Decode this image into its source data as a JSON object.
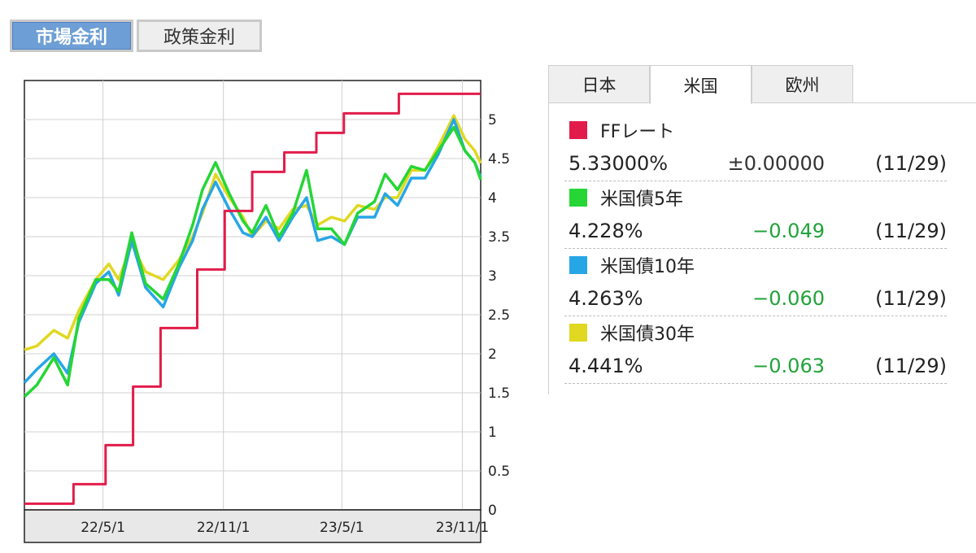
{
  "buttons": {
    "market": "市場金利",
    "policy": "政策金利"
  },
  "tabs": [
    "日本",
    "米国",
    "欧州"
  ],
  "active_tab": "米国",
  "rates": [
    {
      "name": "FFレート",
      "value": "5.33000%",
      "change": "±0.00000",
      "date": "(11/29)",
      "color": "#e21c4a",
      "trend": "flat"
    },
    {
      "name": "米国債5年",
      "value": "4.228%",
      "change": "−0.049",
      "date": "(11/29)",
      "color": "#25d635",
      "trend": "down"
    },
    {
      "name": "米国債10年",
      "value": "4.263%",
      "change": "−0.060",
      "date": "(11/29)",
      "color": "#27a6e6",
      "trend": "down"
    },
    {
      "name": "米国債30年",
      "value": "4.441%",
      "change": "−0.063",
      "date": "(11/29)",
      "color": "#e0d821",
      "trend": "down"
    }
  ],
  "chart_data": {
    "type": "line",
    "x_tick_labels": [
      "22/5/1",
      "22/11/1",
      "23/5/1",
      "23/11/1"
    ],
    "x_range": [
      "2022-01-01",
      "2023-11-29"
    ],
    "y_ticks": [
      0,
      0.5,
      1,
      1.5,
      2,
      2.5,
      3,
      3.5,
      4,
      4.5,
      5
    ],
    "ylim": [
      0,
      5.5
    ],
    "grid": true,
    "y_axis_side": "right",
    "series": [
      {
        "name": "FFレート",
        "color": "#e21c4a",
        "style": "step",
        "points": [
          [
            "2022-01-01",
            0.08
          ],
          [
            "2022-03-17",
            0.33
          ],
          [
            "2022-05-05",
            0.83
          ],
          [
            "2022-06-16",
            1.58
          ],
          [
            "2022-07-28",
            2.33
          ],
          [
            "2022-09-22",
            3.08
          ],
          [
            "2022-11-03",
            3.83
          ],
          [
            "2022-12-15",
            4.33
          ],
          [
            "2023-02-02",
            4.58
          ],
          [
            "2023-03-23",
            4.83
          ],
          [
            "2023-05-04",
            5.08
          ],
          [
            "2023-07-27",
            5.33
          ],
          [
            "2023-11-29",
            5.33
          ]
        ]
      },
      {
        "name": "米国債5年",
        "color": "#25d635",
        "style": "line",
        "points": [
          [
            "2022-01-01",
            1.45
          ],
          [
            "2022-01-20",
            1.6
          ],
          [
            "2022-02-15",
            1.95
          ],
          [
            "2022-03-08",
            1.6
          ],
          [
            "2022-03-25",
            2.45
          ],
          [
            "2022-04-20",
            2.95
          ],
          [
            "2022-05-10",
            2.95
          ],
          [
            "2022-05-25",
            2.8
          ],
          [
            "2022-06-14",
            3.55
          ],
          [
            "2022-07-05",
            2.9
          ],
          [
            "2022-08-01",
            2.7
          ],
          [
            "2022-08-25",
            3.15
          ],
          [
            "2022-09-15",
            3.65
          ],
          [
            "2022-09-30",
            4.1
          ],
          [
            "2022-10-20",
            4.45
          ],
          [
            "2022-11-10",
            4.05
          ],
          [
            "2022-12-01",
            3.7
          ],
          [
            "2022-12-15",
            3.55
          ],
          [
            "2023-01-05",
            3.9
          ],
          [
            "2023-01-25",
            3.5
          ],
          [
            "2023-02-15",
            3.8
          ],
          [
            "2023-03-08",
            4.35
          ],
          [
            "2023-03-25",
            3.6
          ],
          [
            "2023-04-15",
            3.6
          ],
          [
            "2023-05-05",
            3.4
          ],
          [
            "2023-05-25",
            3.8
          ],
          [
            "2023-06-20",
            3.95
          ],
          [
            "2023-07-06",
            4.3
          ],
          [
            "2023-07-25",
            4.1
          ],
          [
            "2023-08-15",
            4.4
          ],
          [
            "2023-09-05",
            4.35
          ],
          [
            "2023-09-25",
            4.6
          ],
          [
            "2023-10-19",
            4.9
          ],
          [
            "2023-11-05",
            4.6
          ],
          [
            "2023-11-20",
            4.45
          ],
          [
            "2023-11-29",
            4.23
          ]
        ]
      },
      {
        "name": "米国債10年",
        "color": "#27a6e6",
        "style": "line",
        "points": [
          [
            "2022-01-01",
            1.63
          ],
          [
            "2022-01-20",
            1.8
          ],
          [
            "2022-02-15",
            2.0
          ],
          [
            "2022-03-08",
            1.75
          ],
          [
            "2022-03-25",
            2.4
          ],
          [
            "2022-04-20",
            2.9
          ],
          [
            "2022-05-10",
            3.05
          ],
          [
            "2022-05-25",
            2.75
          ],
          [
            "2022-06-14",
            3.45
          ],
          [
            "2022-07-05",
            2.85
          ],
          [
            "2022-08-01",
            2.6
          ],
          [
            "2022-08-25",
            3.1
          ],
          [
            "2022-09-15",
            3.45
          ],
          [
            "2022-09-30",
            3.85
          ],
          [
            "2022-10-20",
            4.2
          ],
          [
            "2022-11-10",
            3.85
          ],
          [
            "2022-12-01",
            3.55
          ],
          [
            "2022-12-15",
            3.5
          ],
          [
            "2023-01-05",
            3.75
          ],
          [
            "2023-01-25",
            3.45
          ],
          [
            "2023-02-15",
            3.75
          ],
          [
            "2023-03-08",
            4.0
          ],
          [
            "2023-03-25",
            3.45
          ],
          [
            "2023-04-15",
            3.5
          ],
          [
            "2023-05-05",
            3.4
          ],
          [
            "2023-05-25",
            3.75
          ],
          [
            "2023-06-20",
            3.75
          ],
          [
            "2023-07-06",
            4.05
          ],
          [
            "2023-07-25",
            3.9
          ],
          [
            "2023-08-15",
            4.25
          ],
          [
            "2023-09-05",
            4.25
          ],
          [
            "2023-09-25",
            4.55
          ],
          [
            "2023-10-19",
            5.0
          ],
          [
            "2023-11-05",
            4.6
          ],
          [
            "2023-11-20",
            4.45
          ],
          [
            "2023-11-29",
            4.26
          ]
        ]
      },
      {
        "name": "米国債30年",
        "color": "#e0d821",
        "style": "line",
        "points": [
          [
            "2022-01-01",
            2.05
          ],
          [
            "2022-01-20",
            2.1
          ],
          [
            "2022-02-15",
            2.3
          ],
          [
            "2022-03-08",
            2.2
          ],
          [
            "2022-03-25",
            2.55
          ],
          [
            "2022-04-20",
            2.95
          ],
          [
            "2022-05-10",
            3.15
          ],
          [
            "2022-05-25",
            2.95
          ],
          [
            "2022-06-14",
            3.4
          ],
          [
            "2022-07-05",
            3.05
          ],
          [
            "2022-08-01",
            2.95
          ],
          [
            "2022-08-25",
            3.2
          ],
          [
            "2022-09-15",
            3.5
          ],
          [
            "2022-09-30",
            3.8
          ],
          [
            "2022-10-20",
            4.3
          ],
          [
            "2022-11-10",
            4.0
          ],
          [
            "2022-12-01",
            3.75
          ],
          [
            "2022-12-15",
            3.5
          ],
          [
            "2023-01-05",
            3.7
          ],
          [
            "2023-01-25",
            3.6
          ],
          [
            "2023-02-15",
            3.85
          ],
          [
            "2023-03-08",
            3.9
          ],
          [
            "2023-03-25",
            3.65
          ],
          [
            "2023-04-15",
            3.75
          ],
          [
            "2023-05-05",
            3.7
          ],
          [
            "2023-05-25",
            3.9
          ],
          [
            "2023-06-20",
            3.85
          ],
          [
            "2023-07-06",
            4.0
          ],
          [
            "2023-07-25",
            4.0
          ],
          [
            "2023-08-15",
            4.35
          ],
          [
            "2023-09-05",
            4.35
          ],
          [
            "2023-09-25",
            4.65
          ],
          [
            "2023-10-19",
            5.05
          ],
          [
            "2023-11-05",
            4.75
          ],
          [
            "2023-11-20",
            4.6
          ],
          [
            "2023-11-29",
            4.44
          ]
        ]
      }
    ]
  }
}
